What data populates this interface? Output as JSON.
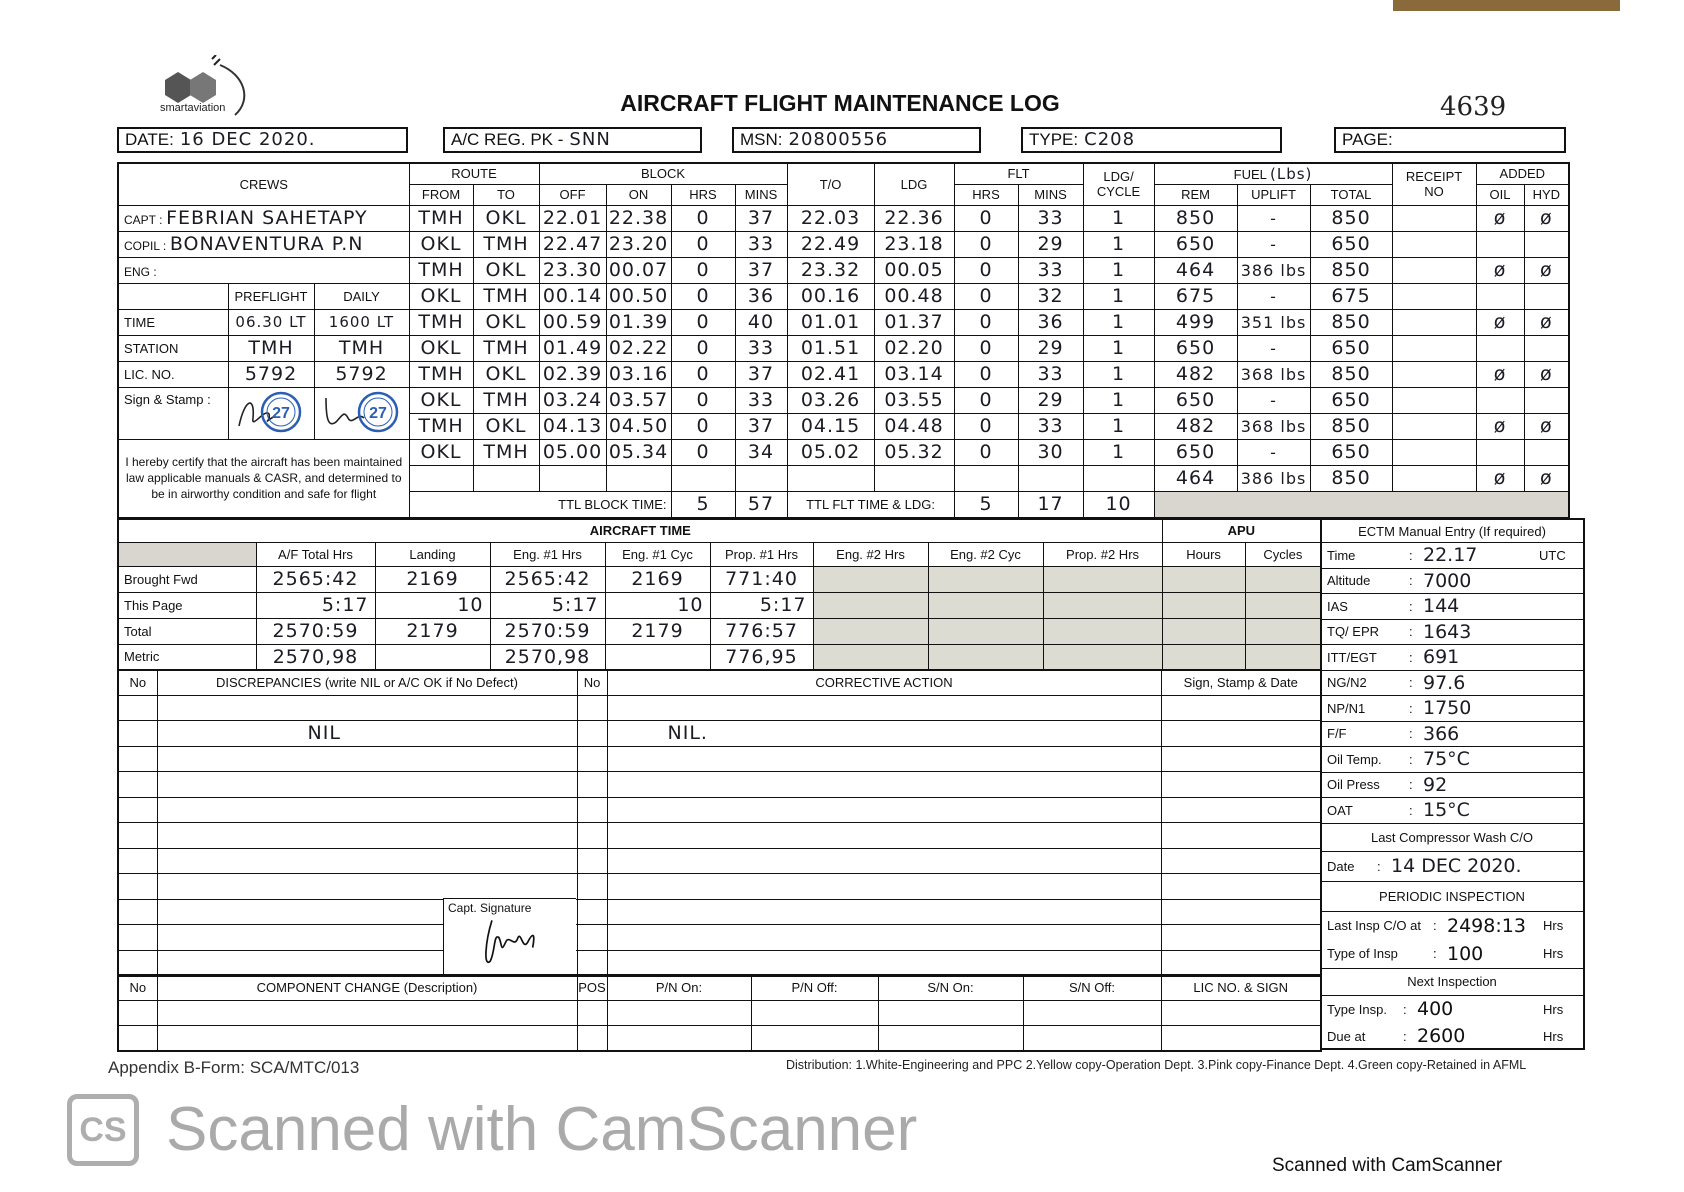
{
  "header": {
    "logo_text": "smartaviation",
    "title": "AIRCRAFT FLIGHT MAINTENANCE LOG",
    "form_number": "4639",
    "date_label": "DATE:",
    "date": "16 DEC 2020.",
    "reg_label": "A/C REG. PK -",
    "reg": "SNN",
    "msn_label": "MSN:",
    "msn": "20800556",
    "type_label": "TYPE:",
    "type": "C208",
    "page_label": "PAGE:",
    "page": ""
  },
  "crew": {
    "title": "CREWS",
    "capt_label": "CAPT  :",
    "capt": "FEBRIAN SAHETAPY",
    "copil_label": "COPIL  :",
    "copil": "BONAVENTURA P.N",
    "eng_label": "ENG    :",
    "eng": "",
    "preflight_label": "PREFLIGHT",
    "daily_label": "DAILY",
    "time_label": "TIME",
    "time_preflight": "06.30 LT",
    "time_daily": "1600 LT",
    "station_label": "STATION",
    "station_preflight": "TMH",
    "station_daily": "TMH",
    "lic_label": "LIC. NO.",
    "lic_preflight": "5792",
    "lic_daily": "5792",
    "sign_label": "Sign & Stamp :",
    "stamp_number": "27",
    "certify": "I hereby certify that the aircraft has been maintained law applicable manuals & CASR, and determined to be in airworthy condition and safe for flight"
  },
  "flight_headers": {
    "route": "ROUTE",
    "from": "FROM",
    "to": "TO",
    "block": "BLOCK",
    "off": "OFF",
    "on": "ON",
    "hrs": "HRS",
    "mins": "MINS",
    "takeoff": "T/O",
    "ldg": "LDG",
    "flt": "FLT",
    "flt_hrs": "HRS",
    "flt_mins": "MINS",
    "cycle_1": "LDG/",
    "cycle_2": "CYCLE",
    "fuel": "FUEL",
    "fuel_unit": "(Lbs)",
    "rem": "REM",
    "uplift": "UPLIFT",
    "total": "TOTAL",
    "receipt_1": "RECEIPT",
    "receipt_2": "NO",
    "added": "ADDED",
    "oil": "OIL",
    "hyd": "HYD"
  },
  "flights": [
    [
      "TMH",
      "OKL",
      "22.01",
      "22.38",
      "0",
      "37",
      "22.03",
      "22.36",
      "0",
      "33",
      "1",
      "850",
      "-",
      "850",
      "",
      "ø",
      "ø"
    ],
    [
      "OKL",
      "TMH",
      "22.47",
      "23.20",
      "0",
      "33",
      "22.49",
      "23.18",
      "0",
      "29",
      "1",
      "650",
      "-",
      "650",
      "",
      "",
      ""
    ],
    [
      "TMH",
      "OKL",
      "23.30",
      "00.07",
      "0",
      "37",
      "23.32",
      "00.05",
      "0",
      "33",
      "1",
      "464",
      "386 lbs",
      "850",
      "",
      "ø",
      "ø"
    ],
    [
      "OKL",
      "TMH",
      "00.14",
      "00.50",
      "0",
      "36",
      "00.16",
      "00.48",
      "0",
      "32",
      "1",
      "675",
      "-",
      "675",
      "",
      "",
      ""
    ],
    [
      "TMH",
      "OKL",
      "00.59",
      "01.39",
      "0",
      "40",
      "01.01",
      "01.37",
      "0",
      "36",
      "1",
      "499",
      "351 lbs",
      "850",
      "",
      "ø",
      "ø"
    ],
    [
      "OKL",
      "TMH",
      "01.49",
      "02.22",
      "0",
      "33",
      "01.51",
      "02.20",
      "0",
      "29",
      "1",
      "650",
      "-",
      "650",
      "",
      "",
      ""
    ],
    [
      "TMH",
      "OKL",
      "02.39",
      "03.16",
      "0",
      "37",
      "02.41",
      "03.14",
      "0",
      "33",
      "1",
      "482",
      "368 lbs",
      "850",
      "",
      "ø",
      "ø"
    ],
    [
      "OKL",
      "TMH",
      "03.24",
      "03.57",
      "0",
      "33",
      "03.26",
      "03.55",
      "0",
      "29",
      "1",
      "650",
      "-",
      "650",
      "",
      "",
      ""
    ],
    [
      "TMH",
      "OKL",
      "04.13",
      "04.50",
      "0",
      "37",
      "04.15",
      "04.48",
      "0",
      "33",
      "1",
      "482",
      "368 lbs",
      "850",
      "",
      "ø",
      "ø"
    ],
    [
      "OKL",
      "TMH",
      "05.00",
      "05.34",
      "0",
      "34",
      "05.02",
      "05.32",
      "0",
      "30",
      "1",
      "650",
      "-",
      "650",
      "",
      "",
      ""
    ],
    [
      "",
      "",
      "",
      "",
      "",
      "",
      "",
      "",
      "",
      "",
      "",
      "464",
      "386 lbs",
      "850",
      "",
      "ø",
      "ø"
    ]
  ],
  "totals": {
    "block_label": "TTL BLOCK TIME:",
    "block_hrs": "5",
    "block_mins": "57",
    "flt_label": "TTL FLT TIME & LDG:",
    "flt_hrs": "5",
    "flt_mins": "17",
    "landings": "10"
  },
  "aircraft_time": {
    "title": "AIRCRAFT TIME",
    "apu_title": "APU",
    "headers": [
      "A/F Total Hrs",
      "Landing",
      "Eng. #1 Hrs",
      "Eng. #1 Cyc",
      "Prop. #1 Hrs",
      "Eng. #2 Hrs",
      "Eng. #2 Cyc",
      "Prop. #2 Hrs",
      "Hours",
      "Cycles"
    ],
    "rows": [
      {
        "label": "Brought Fwd",
        "values": [
          "2565:42",
          "2169",
          "2565:42",
          "2169",
          "771:40",
          "",
          "",
          "",
          "",
          ""
        ]
      },
      {
        "label": "This Page",
        "values": [
          "5:17",
          "10",
          "5:17",
          "10",
          "5:17",
          "",
          "",
          "",
          "",
          ""
        ]
      },
      {
        "label": "Total",
        "values": [
          "2570:59",
          "2179",
          "2570:59",
          "2179",
          "776:57",
          "",
          "",
          "",
          "",
          ""
        ]
      },
      {
        "label": "Metric",
        "values": [
          "2570,98",
          "",
          "2570,98",
          "",
          "776,95",
          "",
          "",
          "",
          "",
          ""
        ]
      }
    ]
  },
  "ectm": {
    "title": "ECTM Manual Entry (If required)",
    "items": [
      {
        "label": "Time",
        "value": "22.17",
        "unit": "UTC"
      },
      {
        "label": "Altitude",
        "value": "7000",
        "unit": ""
      },
      {
        "label": "IAS",
        "value": "144",
        "unit": ""
      },
      {
        "label": "TQ/ EPR",
        "value": "1643",
        "unit": ""
      },
      {
        "label": "ITT/EGT",
        "value": "691",
        "unit": ""
      },
      {
        "label": "NG/N2",
        "value": "97.6",
        "unit": ""
      },
      {
        "label": "NP/N1",
        "value": "1750",
        "unit": ""
      },
      {
        "label": "F/F",
        "value": "366",
        "unit": ""
      },
      {
        "label": "Oil Temp.",
        "value": "75°C",
        "unit": ""
      },
      {
        "label": "Oil Press",
        "value": "92",
        "unit": ""
      },
      {
        "label": "OAT",
        "value": "15°C",
        "unit": ""
      }
    ],
    "wash_title": "Last Compressor Wash C/O",
    "wash_date_label": "Date",
    "wash_date": "14 DEC 2020.",
    "periodic_title": "PERIODIC INSPECTION",
    "last_insp_label": "Last Insp C/O at",
    "last_insp": "2498:13",
    "type_insp_label": "Type of Insp",
    "type_insp": "100",
    "next_title": "Next Inspection",
    "next_type_label": "Type Insp.",
    "next_type": "400",
    "due_label": "Due at",
    "due": "2600",
    "hrs_unit": "Hrs"
  },
  "discrepancies": {
    "no_label": "No",
    "title": "DISCREPANCIES (write NIL or A/C OK if No Defect)",
    "action_no_label": "No",
    "action_title": "CORRECTIVE ACTION",
    "sign_title": "Sign, Stamp & Date",
    "entry": "NIL",
    "action_entry": "NIL.",
    "capt_signature_label": "Capt. Signature"
  },
  "component_change": {
    "headers": [
      "No",
      "COMPONENT CHANGE (Description)",
      "POS",
      "P/N On:",
      "P/N Off:",
      "S/N On:",
      "S/N Off:",
      "LIC NO. & SIGN"
    ]
  },
  "footer": {
    "form_ref": "Appendix B-Form: SCA/MTC/013",
    "distribution": "Distribution: 1.White-Engineering and PPC  2.Yellow copy-Operation Dept.  3.Pink copy-Finance Dept.  4.Green copy-Retained in AFML",
    "watermark_icon": "CS",
    "watermark": "Scanned with CamScanner",
    "scanned_note": "Scanned with CamScanner"
  }
}
